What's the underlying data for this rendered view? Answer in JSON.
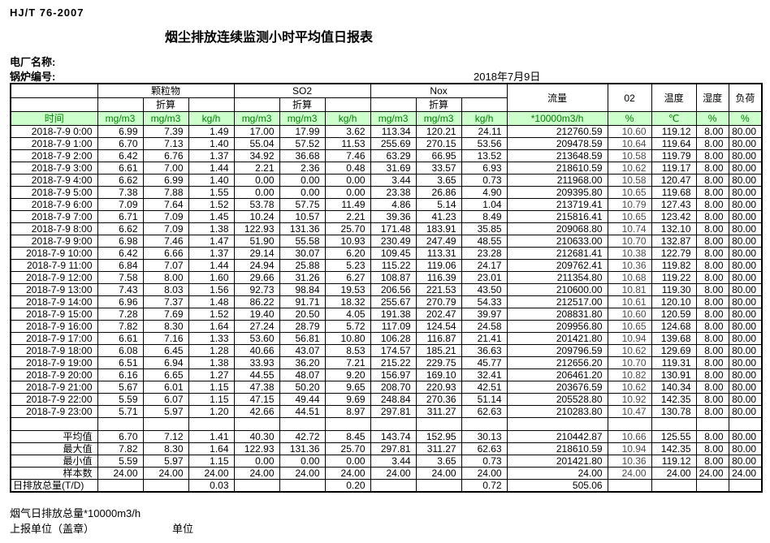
{
  "meta": {
    "doc_code": "HJ/T  76-2007",
    "title": "烟尘排放连续监测小时平均值日报表",
    "plant_label": "电厂名称:",
    "boiler_label": "锅炉编号:",
    "date": "2018年7月9日"
  },
  "table": {
    "header": {
      "groups": [
        {
          "label": "颗粒物"
        },
        {
          "label": "SO2"
        },
        {
          "label": "Nox"
        }
      ],
      "converted_label": "折算",
      "singles": [
        "流量",
        "02",
        "温度",
        "湿度",
        "负荷"
      ],
      "units": [
        "时间",
        "mg/m3",
        "mg/m3",
        "kg/h",
        "mg/m3",
        "mg/m3",
        "kg/h",
        "mg/m3",
        "mg/m3",
        "kg/h",
        "*10000m3/h",
        "%",
        "℃",
        "%",
        "%"
      ]
    },
    "rows": [
      [
        "2018-7-9 0:00",
        "6.99",
        "7.39",
        "1.49",
        "17.00",
        "17.99",
        "3.62",
        "113.34",
        "120.21",
        "24.11",
        "212760.59",
        "10.60",
        "119.12",
        "8.00",
        "80.00"
      ],
      [
        "2018-7-9 1:00",
        "6.70",
        "7.13",
        "1.40",
        "55.04",
        "57.52",
        "11.53",
        "255.69",
        "270.15",
        "53.56",
        "209478.59",
        "10.64",
        "119.64",
        "8.00",
        "80.00"
      ],
      [
        "2018-7-9 2:00",
        "6.42",
        "6.76",
        "1.37",
        "34.92",
        "36.68",
        "7.46",
        "63.29",
        "66.95",
        "13.52",
        "213648.59",
        "10.58",
        "119.79",
        "8.00",
        "80.00"
      ],
      [
        "2018-7-9 3:00",
        "6.61",
        "7.00",
        "1.44",
        "2.21",
        "2.36",
        "0.48",
        "31.69",
        "33.57",
        "6.93",
        "218610.59",
        "10.62",
        "119.17",
        "8.00",
        "80.00"
      ],
      [
        "2018-7-9 4:00",
        "6.62",
        "6.99",
        "1.40",
        "0.00",
        "0.00",
        "0.00",
        "3.44",
        "3.65",
        "0.73",
        "211968.00",
        "10.58",
        "120.47",
        "8.00",
        "80.00"
      ],
      [
        "2018-7-9 5:00",
        "7.38",
        "7.88",
        "1.55",
        "0.00",
        "0.00",
        "0.00",
        "23.38",
        "26.86",
        "4.90",
        "209395.80",
        "10.65",
        "119.68",
        "8.00",
        "80.00"
      ],
      [
        "2018-7-9 6:00",
        "7.09",
        "7.64",
        "1.52",
        "53.78",
        "57.75",
        "11.49",
        "4.86",
        "5.14",
        "1.04",
        "213719.41",
        "10.79",
        "127.43",
        "8.00",
        "80.00"
      ],
      [
        "2018-7-9 7:00",
        "6.71",
        "7.09",
        "1.45",
        "10.24",
        "10.57",
        "2.21",
        "39.36",
        "41.23",
        "8.49",
        "215816.41",
        "10.65",
        "123.42",
        "8.00",
        "80.00"
      ],
      [
        "2018-7-9 8:00",
        "6.62",
        "7.09",
        "1.38",
        "122.93",
        "131.36",
        "25.70",
        "171.48",
        "183.91",
        "35.85",
        "209068.80",
        "10.74",
        "132.10",
        "8.00",
        "80.00"
      ],
      [
        "2018-7-9 9:00",
        "6.98",
        "7.46",
        "1.47",
        "51.90",
        "55.58",
        "10.93",
        "230.49",
        "247.49",
        "48.55",
        "210633.00",
        "10.70",
        "132.87",
        "8.00",
        "80.00"
      ],
      [
        "2018-7-9 10:00",
        "6.42",
        "6.66",
        "1.37",
        "29.14",
        "30.07",
        "6.20",
        "109.45",
        "113.31",
        "23.28",
        "212681.41",
        "10.38",
        "122.79",
        "8.00",
        "80.00"
      ],
      [
        "2018-7-9 11:00",
        "6.84",
        "7.07",
        "1.44",
        "24.94",
        "25.88",
        "5.23",
        "115.22",
        "119.06",
        "24.17",
        "209762.41",
        "10.36",
        "119.82",
        "8.00",
        "80.00"
      ],
      [
        "2018-7-9 12:00",
        "7.58",
        "8.00",
        "1.60",
        "29.66",
        "31.26",
        "6.27",
        "108.87",
        "116.39",
        "23.01",
        "211354.80",
        "10.68",
        "119.22",
        "8.00",
        "80.00"
      ],
      [
        "2018-7-9 13:00",
        "7.43",
        "8.03",
        "1.56",
        "92.73",
        "98.84",
        "19.53",
        "206.56",
        "221.53",
        "43.50",
        "210600.00",
        "10.81",
        "119.30",
        "8.00",
        "80.00"
      ],
      [
        "2018-7-9 14:00",
        "6.96",
        "7.37",
        "1.48",
        "86.22",
        "91.71",
        "18.32",
        "255.67",
        "270.79",
        "54.33",
        "212517.00",
        "10.61",
        "120.10",
        "8.00",
        "80.00"
      ],
      [
        "2018-7-9 15:00",
        "7.28",
        "7.69",
        "1.52",
        "19.40",
        "20.50",
        "4.05",
        "191.38",
        "202.47",
        "39.97",
        "208831.80",
        "10.60",
        "120.59",
        "8.00",
        "80.00"
      ],
      [
        "2018-7-9 16:00",
        "7.82",
        "8.30",
        "1.64",
        "27.24",
        "28.79",
        "5.72",
        "117.09",
        "124.54",
        "24.58",
        "209956.80",
        "10.65",
        "124.68",
        "8.00",
        "80.00"
      ],
      [
        "2018-7-9 17:00",
        "6.61",
        "7.16",
        "1.33",
        "53.60",
        "56.81",
        "10.80",
        "106.28",
        "116.87",
        "21.41",
        "201421.80",
        "10.94",
        "139.68",
        "8.00",
        "80.00"
      ],
      [
        "2018-7-9 18:00",
        "6.08",
        "6.45",
        "1.28",
        "40.66",
        "43.07",
        "8.53",
        "174.57",
        "185.21",
        "36.63",
        "209796.59",
        "10.62",
        "129.69",
        "8.00",
        "80.00"
      ],
      [
        "2018-7-9 19:00",
        "6.51",
        "6.94",
        "1.38",
        "33.93",
        "36.20",
        "7.21",
        "215.22",
        "229.75",
        "45.77",
        "212656.20",
        "10.70",
        "119.31",
        "8.00",
        "80.00"
      ],
      [
        "2018-7-9 20:00",
        "6.16",
        "6.65",
        "1.27",
        "44.55",
        "48.07",
        "9.20",
        "156.97",
        "169.10",
        "32.41",
        "206461.20",
        "10.82",
        "130.91",
        "8.00",
        "80.00"
      ],
      [
        "2018-7-9 21:00",
        "5.67",
        "6.01",
        "1.15",
        "47.38",
        "50.20",
        "9.65",
        "208.70",
        "220.93",
        "42.51",
        "203676.59",
        "10.62",
        "140.34",
        "8.00",
        "80.00"
      ],
      [
        "2018-7-9 22:00",
        "5.59",
        "6.07",
        "1.15",
        "47.15",
        "49.44",
        "9.69",
        "248.84",
        "270.36",
        "51.14",
        "205528.80",
        "10.92",
        "142.35",
        "8.00",
        "80.00"
      ],
      [
        "2018-7-9 23:00",
        "5.71",
        "5.97",
        "1.20",
        "42.66",
        "44.51",
        "8.97",
        "297.81",
        "311.27",
        "62.63",
        "210283.80",
        "10.47",
        "130.78",
        "8.00",
        "80.00"
      ]
    ],
    "summary": [
      {
        "key": "average",
        "label": "平均值",
        "values": [
          "6.70",
          "7.12",
          "1.41",
          "40.30",
          "42.72",
          "8.45",
          "143.74",
          "152.95",
          "30.13",
          "210442.87",
          "10.66",
          "125.55",
          "8.00",
          "80.00"
        ]
      },
      {
        "key": "max",
        "label": "最大值",
        "values": [
          "7.82",
          "8.30",
          "1.64",
          "122.93",
          "131.36",
          "25.70",
          "297.81",
          "311.27",
          "62.63",
          "218610.59",
          "10.94",
          "142.35",
          "8.00",
          "80.00"
        ]
      },
      {
        "key": "min",
        "label": "最小值",
        "values": [
          "5.59",
          "5.97",
          "1.15",
          "0.00",
          "0.00",
          "0.00",
          "3.44",
          "3.65",
          "0.73",
          "201421.80",
          "10.36",
          "119.12",
          "8.00",
          "80.00"
        ]
      },
      {
        "key": "samples",
        "label": "样本数",
        "values": [
          "24.00",
          "24.00",
          "24.00",
          "24.00",
          "24.00",
          "24.00",
          "24.00",
          "24.00",
          "24.00",
          "24.00",
          "24.00",
          "24.00",
          "24.00",
          "24.00"
        ]
      }
    ],
    "total_row": {
      "key": "daily-total",
      "label": "日排放总量(T/D)",
      "values": [
        "",
        "",
        "0.03",
        "",
        "",
        "0.20",
        "",
        "",
        "0.72",
        "505.06",
        "",
        "",
        "",
        ""
      ]
    }
  },
  "footer": {
    "flow_note": "烟气日排放总量*10000m3/h",
    "report_org": "上报单位（盖章）",
    "unit": "单位"
  }
}
